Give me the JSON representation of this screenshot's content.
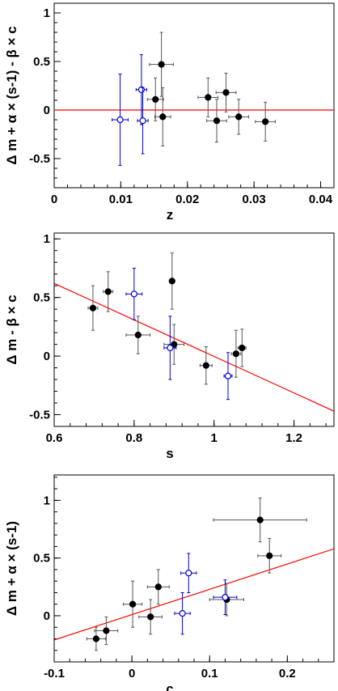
{
  "colors": {
    "frame": "#000000",
    "fit_line": "#ff0000",
    "black_points": "#000000",
    "blue_points": "#0000cc",
    "errorbar_gray": "#555555"
  },
  "chart_data": [
    {
      "type": "scatter",
      "title": "",
      "xlabel": "z",
      "ylabel": "Δ m + α × (s-1) - β × c",
      "xlim": [
        0,
        0.042
      ],
      "ylim": [
        -0.8,
        1.1
      ],
      "xticks": [
        0,
        0.01,
        0.02,
        0.03,
        0.04
      ],
      "xtick_labels": [
        "0",
        "0.01",
        "0.02",
        "0.03",
        "0.04"
      ],
      "yticks": [
        -0.5,
        0,
        0.5,
        1
      ],
      "ytick_labels": [
        "-0.5",
        "0",
        "0.5",
        "1"
      ],
      "grid": false,
      "fit_line": {
        "x": [
          0,
          0.042
        ],
        "y": [
          0,
          0
        ]
      },
      "series": [
        {
          "marker": "filled",
          "points": [
            {
              "x": 0.0161,
              "y": 0.47,
              "xerr": 0.0018,
              "yerr": 0.33
            },
            {
              "x": 0.0152,
              "y": 0.11,
              "xerr": 0.0012,
              "yerr": 0.22
            },
            {
              "x": 0.0163,
              "y": -0.07,
              "xerr": 0.0012,
              "yerr": 0.3
            },
            {
              "x": 0.0231,
              "y": 0.13,
              "xerr": 0.0015,
              "yerr": 0.2
            },
            {
              "x": 0.0244,
              "y": -0.11,
              "xerr": 0.0015,
              "yerr": 0.22
            },
            {
              "x": 0.0258,
              "y": 0.18,
              "xerr": 0.0015,
              "yerr": 0.2
            },
            {
              "x": 0.0277,
              "y": -0.07,
              "xerr": 0.0015,
              "yerr": 0.18
            },
            {
              "x": 0.0317,
              "y": -0.12,
              "xerr": 0.0015,
              "yerr": 0.2
            }
          ]
        },
        {
          "marker": "open",
          "points": [
            {
              "x": 0.0099,
              "y": -0.1,
              "xerr": 0.0012,
              "yerr": 0.47
            },
            {
              "x": 0.0131,
              "y": 0.21,
              "xerr": 0.0008,
              "yerr": 0.36
            },
            {
              "x": 0.0133,
              "y": -0.11,
              "xerr": 0.0008,
              "yerr": 0.34
            }
          ]
        }
      ]
    },
    {
      "type": "scatter",
      "title": "",
      "xlabel": "s",
      "ylabel": "Δ m - β × c",
      "xlim": [
        0.6,
        1.3
      ],
      "ylim": [
        -0.6,
        1.05
      ],
      "xticks": [
        0.6,
        0.8,
        1,
        1.2
      ],
      "xtick_labels": [
        "0.6",
        "0.8",
        "1",
        "1.2"
      ],
      "yticks": [
        -0.5,
        0,
        0.5,
        1
      ],
      "ytick_labels": [
        "-0.5",
        "0",
        "0.5",
        "1"
      ],
      "grid": false,
      "fit_line": {
        "x": [
          0.6,
          1.3
        ],
        "y": [
          0.62,
          -0.47
        ]
      },
      "series": [
        {
          "marker": "filled",
          "points": [
            {
              "x": 0.697,
              "y": 0.41,
              "xerr": 0.012,
              "yerr": 0.19
            },
            {
              "x": 0.735,
              "y": 0.55,
              "xerr": 0.012,
              "yerr": 0.17
            },
            {
              "x": 0.81,
              "y": 0.18,
              "xerr": 0.03,
              "yerr": 0.16
            },
            {
              "x": 0.895,
              "y": 0.64,
              "xerr": 0.0,
              "yerr": 0.24
            },
            {
              "x": 0.9,
              "y": 0.1,
              "xerr": 0.025,
              "yerr": 0.17
            },
            {
              "x": 0.98,
              "y": -0.08,
              "xerr": 0.015,
              "yerr": 0.16
            },
            {
              "x": 1.055,
              "y": 0.02,
              "xerr": 0.012,
              "yerr": 0.2
            },
            {
              "x": 1.07,
              "y": 0.07,
              "xerr": 0.01,
              "yerr": 0.16
            }
          ]
        },
        {
          "marker": "open",
          "points": [
            {
              "x": 0.8,
              "y": 0.53,
              "xerr": 0.02,
              "yerr": 0.22
            },
            {
              "x": 0.89,
              "y": 0.07,
              "xerr": 0.015,
              "yerr": 0.27
            },
            {
              "x": 1.035,
              "y": -0.17,
              "xerr": 0.01,
              "yerr": 0.2
            }
          ]
        }
      ]
    },
    {
      "type": "scatter",
      "title": "",
      "xlabel": "c",
      "ylabel": "Δ m + α × (s-1)",
      "xlim": [
        -0.1,
        0.26
      ],
      "ylim": [
        -0.4,
        1.22
      ],
      "xticks": [
        -0.1,
        0,
        0.1,
        0.2
      ],
      "xtick_labels": [
        "-0.1",
        "0",
        "0.1",
        "0.2"
      ],
      "yticks": [
        0,
        0.5,
        1
      ],
      "ytick_labels": [
        "0",
        "0.5",
        "1"
      ],
      "grid": false,
      "fit_line": {
        "x": [
          -0.1,
          0.26
        ],
        "y": [
          -0.21,
          0.58
        ]
      },
      "series": [
        {
          "marker": "filled",
          "points": [
            {
              "x": -0.046,
              "y": -0.2,
              "xerr": 0.012,
              "yerr": 0.1
            },
            {
              "x": -0.033,
              "y": -0.13,
              "xerr": 0.015,
              "yerr": 0.12
            },
            {
              "x": 0.001,
              "y": 0.1,
              "xerr": 0.012,
              "yerr": 0.2
            },
            {
              "x": 0.024,
              "y": -0.01,
              "xerr": 0.015,
              "yerr": 0.15
            },
            {
              "x": 0.034,
              "y": 0.25,
              "xerr": 0.014,
              "yerr": 0.15
            },
            {
              "x": 0.122,
              "y": 0.14,
              "xerr": 0.022,
              "yerr": 0.14
            },
            {
              "x": 0.165,
              "y": 0.83,
              "xerr": 0.06,
              "yerr": 0.19
            },
            {
              "x": 0.177,
              "y": 0.52,
              "xerr": 0.015,
              "yerr": 0.15
            }
          ]
        },
        {
          "marker": "open",
          "points": [
            {
              "x": 0.065,
              "y": 0.02,
              "xerr": 0.01,
              "yerr": 0.18
            },
            {
              "x": 0.073,
              "y": 0.37,
              "xerr": 0.01,
              "yerr": 0.17
            },
            {
              "x": 0.12,
              "y": 0.16,
              "xerr": 0.015,
              "yerr": 0.15
            }
          ]
        }
      ]
    }
  ]
}
